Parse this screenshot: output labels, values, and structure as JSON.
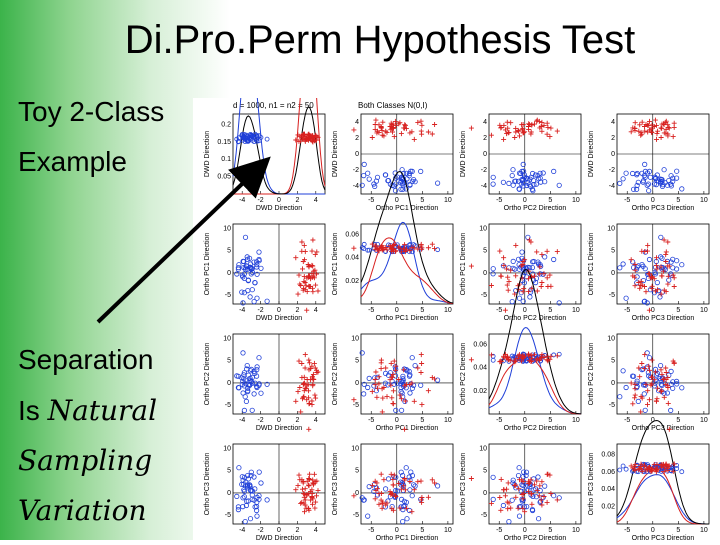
{
  "slide": {
    "title": "Di.Pro.Perm Hypothesis Test",
    "left_labels": [
      {
        "text": "Toy 2-Class",
        "italic": false
      },
      {
        "text": "Example",
        "italic": false
      },
      {
        "text": "Separation",
        "italic": false
      },
      {
        "text_prefix": "Is ",
        "text_italic": "Natural"
      },
      {
        "text": "Sampling",
        "italic": true
      },
      {
        "text": "Variation",
        "italic": true
      }
    ],
    "arrow": {
      "color": "#000000"
    }
  },
  "figure": {
    "header_left": "d = 1000, n1 = n2 = 50",
    "header_right": "Both Classes N(0,I)",
    "row_ylabels": [
      "DWD Direction",
      "Ortho PC1 Direction",
      "Ortho PC2 Direction",
      "Ortho PC3 Direction"
    ],
    "col_xlabels": [
      "DWD Direction",
      "Ortho PC1 Direction",
      "Ortho PC2 Direction",
      "Ortho PC3 Direction"
    ],
    "colors": {
      "class1": "#1f3fd8",
      "class2": "#d8201f",
      "all": "#000000"
    },
    "markers": {
      "class1": "o",
      "class2": "+"
    }
  },
  "chart_data": {
    "type": "scatter",
    "title": "",
    "diagonal_type": "kernel density",
    "series": [
      {
        "marker": "o",
        "color": "#1f3fd8"
      },
      {
        "marker": "+",
        "color": "#d8201f"
      }
    ],
    "axes": {
      "DWD Direction": {
        "ticks": [
          -4,
          -2,
          0,
          2,
          4
        ],
        "range": [
          -5,
          5
        ]
      },
      "Ortho PC1 Direction": {
        "ticks": [
          -5,
          0,
          5,
          10
        ],
        "range": [
          -7,
          11
        ]
      },
      "Ortho PC2 Direction": {
        "ticks": [
          -5,
          0,
          5,
          10
        ],
        "range": [
          -7,
          11
        ]
      },
      "Ortho PC3 Direction": {
        "ticks": [
          -5,
          0,
          5,
          10
        ],
        "range": [
          -7,
          11
        ]
      }
    },
    "density_ticks": {
      "DWD Direction": [
        0.05,
        0.1,
        0.15,
        0.2
      ],
      "Ortho PC1 Direction": [
        0.02,
        0.04,
        0.06
      ],
      "Ortho PC2 Direction": [
        0.02,
        0.04,
        0.06
      ],
      "Ortho PC3 Direction": [
        0.02,
        0.04,
        0.06,
        0.08
      ]
    },
    "class_means_dwd": [
      -3.2,
      3.2
    ]
  }
}
